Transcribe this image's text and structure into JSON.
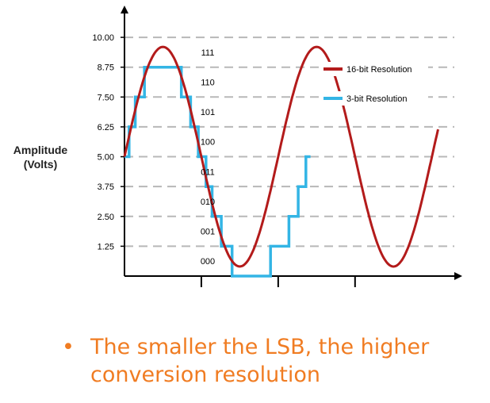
{
  "chart_data": {
    "type": "line",
    "ylabel_lines": [
      "Amplitude",
      "(Volts)"
    ],
    "y_ticks": [
      "1.25",
      "2.50",
      "3.75",
      "5.00",
      "6.25",
      "7.50",
      "8.75",
      "10.00"
    ],
    "ylim": [
      0,
      10.9
    ],
    "xlim": [
      0,
      2.12
    ],
    "grid": true,
    "grid_style": "dashed horizontal",
    "legend_position": "top-right",
    "level_codes": [
      "000",
      "001",
      "010",
      "011",
      "100",
      "101",
      "110",
      "111"
    ],
    "series": [
      {
        "name": "16-bit Resolution",
        "color": "#b31b1b",
        "function": "5 + 4.6*sin(2*pi*x)",
        "x_range": [
          0,
          2.04
        ]
      },
      {
        "name": "3-bit Resolution",
        "color": "#33b5e5",
        "step_points": [
          [
            0.0,
            5.0
          ],
          [
            0.03,
            5.0
          ],
          [
            0.03,
            6.25
          ],
          [
            0.07,
            6.25
          ],
          [
            0.07,
            7.5
          ],
          [
            0.13,
            7.5
          ],
          [
            0.13,
            8.75
          ],
          [
            0.37,
            8.75
          ],
          [
            0.37,
            7.5
          ],
          [
            0.43,
            7.5
          ],
          [
            0.43,
            6.25
          ],
          [
            0.48,
            6.25
          ],
          [
            0.48,
            5.0
          ],
          [
            0.53,
            5.0
          ],
          [
            0.53,
            3.75
          ],
          [
            0.57,
            3.75
          ],
          [
            0.57,
            2.5
          ],
          [
            0.63,
            2.5
          ],
          [
            0.63,
            1.25
          ],
          [
            0.7,
            1.25
          ],
          [
            0.7,
            0.0
          ],
          [
            0.95,
            0.0
          ],
          [
            0.95,
            1.25
          ],
          [
            1.07,
            1.25
          ],
          [
            1.07,
            2.5
          ],
          [
            1.13,
            2.5
          ],
          [
            1.13,
            3.75
          ],
          [
            1.18,
            3.75
          ],
          [
            1.18,
            5.0
          ],
          [
            1.21,
            5.0
          ]
        ]
      }
    ]
  },
  "bullet": {
    "symbol": "•",
    "text": "The smaller the LSB, the higher conversion resolution"
  },
  "colors": {
    "axis": "#000000",
    "grid": "#b8b8b8",
    "bullet_text": "#f07c22"
  }
}
